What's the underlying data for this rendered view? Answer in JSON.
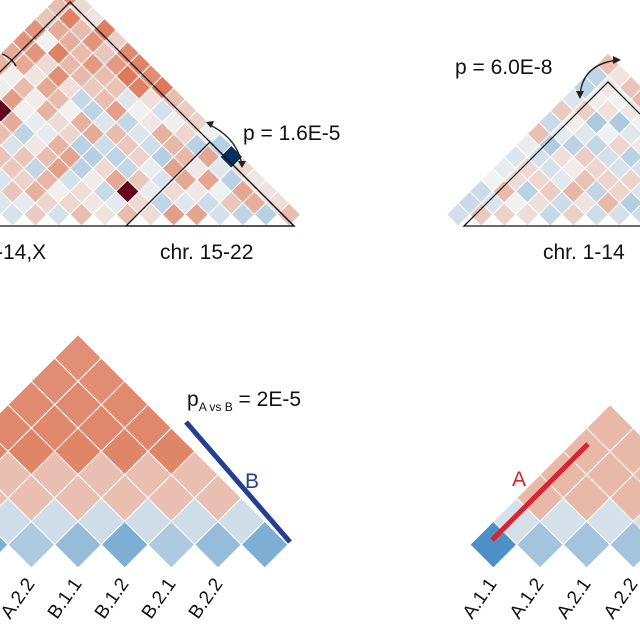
{
  "panels": {
    "top_left": {
      "pvalue_label": "p = 1.6E-5",
      "axis_labels": [
        "-14,X",
        "chr. 15-22"
      ]
    },
    "top_right": {
      "pvalue_label": "p = 6.0E-8",
      "axis_labels": [
        "chr. 1-14"
      ]
    },
    "bottom_left": {
      "pvalue_main": "p",
      "pvalue_sub": "A vs B",
      "pvalue_rest": " = 2E-5",
      "group_label": "B",
      "group_color": "#243f92",
      "tick_labels": [
        "A.2.2",
        "B.1.1",
        "B.1.2",
        "B.2.1",
        "B.2.2"
      ]
    },
    "bottom_right": {
      "group_label": "A",
      "group_color": "#d9232f",
      "tick_labels": [
        "A.1.1",
        "A.1.2",
        "A.2.1",
        "A.2.2"
      ]
    }
  },
  "colors": {
    "positive": "#d9603a",
    "negative": "#2f7fbf",
    "strong_positive": "#67001f",
    "strong_negative": "#053061",
    "neutral": "#f2f2f2"
  }
}
